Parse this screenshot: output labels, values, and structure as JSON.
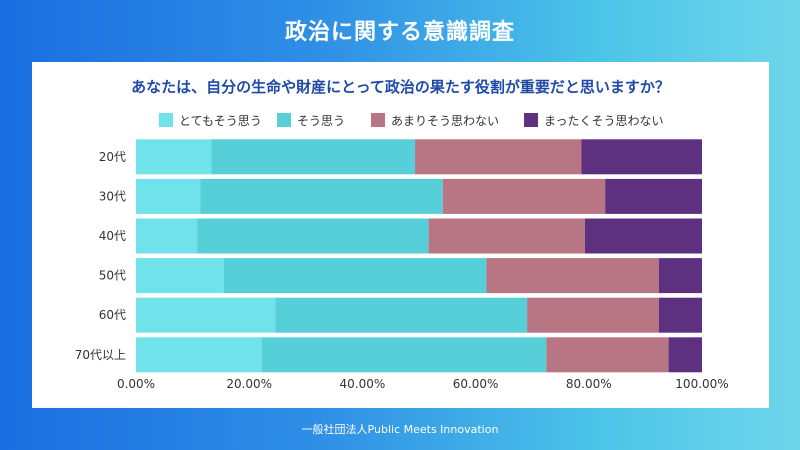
{
  "header": {
    "title": "政治に関する意識調査"
  },
  "footer": {
    "credit": "一般社団法人Public Meets Innovation"
  },
  "chart_data": {
    "type": "bar",
    "orientation": "horizontal",
    "stacked": true,
    "title": "あなたは、自分の生命や財産にとって政治の果たす役割が重要だと思いますか？",
    "categories": [
      "20代",
      "30代",
      "40代",
      "50代",
      "60代",
      "70代以上"
    ],
    "series": [
      {
        "name": "とてもそう思う",
        "color": "#6fe2ea",
        "values": [
          13.3,
          11.4,
          10.8,
          15.5,
          24.6,
          22.2
        ]
      },
      {
        "name": "そう思う",
        "color": "#56cfd9",
        "values": [
          36.0,
          42.8,
          40.9,
          46.4,
          44.5,
          50.3
        ]
      },
      {
        "name": "あまりそう思わない",
        "color": "#b87584",
        "values": [
          29.4,
          28.7,
          27.6,
          30.5,
          23.3,
          21.6
        ]
      },
      {
        "name": "まったくそう思わない",
        "color": "#5e3180",
        "values": [
          21.3,
          17.1,
          20.7,
          7.6,
          7.6,
          5.9
        ]
      }
    ],
    "xlim": [
      0,
      100
    ],
    "xticks": [
      "0.00%",
      "20.00%",
      "40.00%",
      "60.00%",
      "80.00%",
      "100.00%"
    ],
    "legend": "top"
  }
}
